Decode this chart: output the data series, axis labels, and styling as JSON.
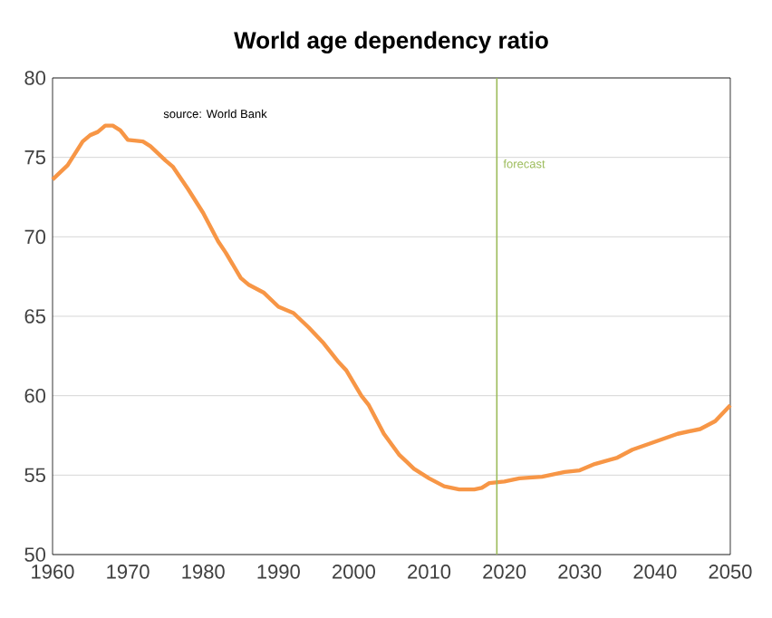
{
  "chart_data": {
    "type": "line",
    "title": "World age dependency ratio",
    "annotations": [
      "source:  World Bank"
    ],
    "x": [
      1960,
      1962,
      1964,
      1965,
      1966,
      1967,
      1968,
      1969,
      1970,
      1972,
      1973,
      1975,
      1976,
      1978,
      1980,
      1982,
      1983,
      1985,
      1986,
      1988,
      1990,
      1992,
      1994,
      1996,
      1998,
      1999,
      2001,
      2002,
      2004,
      2006,
      2008,
      2010,
      2012,
      2014,
      2016,
      2017,
      2018,
      2020,
      2022,
      2025,
      2028,
      2030,
      2032,
      2035,
      2037,
      2040,
      2043,
      2046,
      2048,
      2050
    ],
    "series": [
      {
        "color": "#f79646",
        "values": [
          73.6,
          74.5,
          76.0,
          76.4,
          76.6,
          77.0,
          77.0,
          76.7,
          76.1,
          76.0,
          75.7,
          74.8,
          74.4,
          73.0,
          71.5,
          69.7,
          69.0,
          67.4,
          67.0,
          66.5,
          65.6,
          65.2,
          64.3,
          63.3,
          62.1,
          61.6,
          60.0,
          59.4,
          57.6,
          56.3,
          55.4,
          54.8,
          54.3,
          54.1,
          54.1,
          54.2,
          54.5,
          54.6,
          54.8,
          54.9,
          55.2,
          55.3,
          55.7,
          56.1,
          56.6,
          57.1,
          57.6,
          57.9,
          58.4,
          59.4
        ]
      }
    ],
    "xlim": [
      1960,
      2050
    ],
    "ylim": [
      50,
      80
    ],
    "xticks": [
      1960,
      1970,
      1980,
      1990,
      2000,
      2010,
      2020,
      2030,
      2040,
      2050
    ],
    "yticks": [
      50,
      55,
      60,
      65,
      70,
      75,
      80
    ],
    "grid": "y",
    "marker": "none",
    "line_style": "solid",
    "ref_lines": [
      {
        "axis": "x",
        "value": 2019,
        "label": "forecast",
        "color": "#9bbb59"
      }
    ]
  }
}
